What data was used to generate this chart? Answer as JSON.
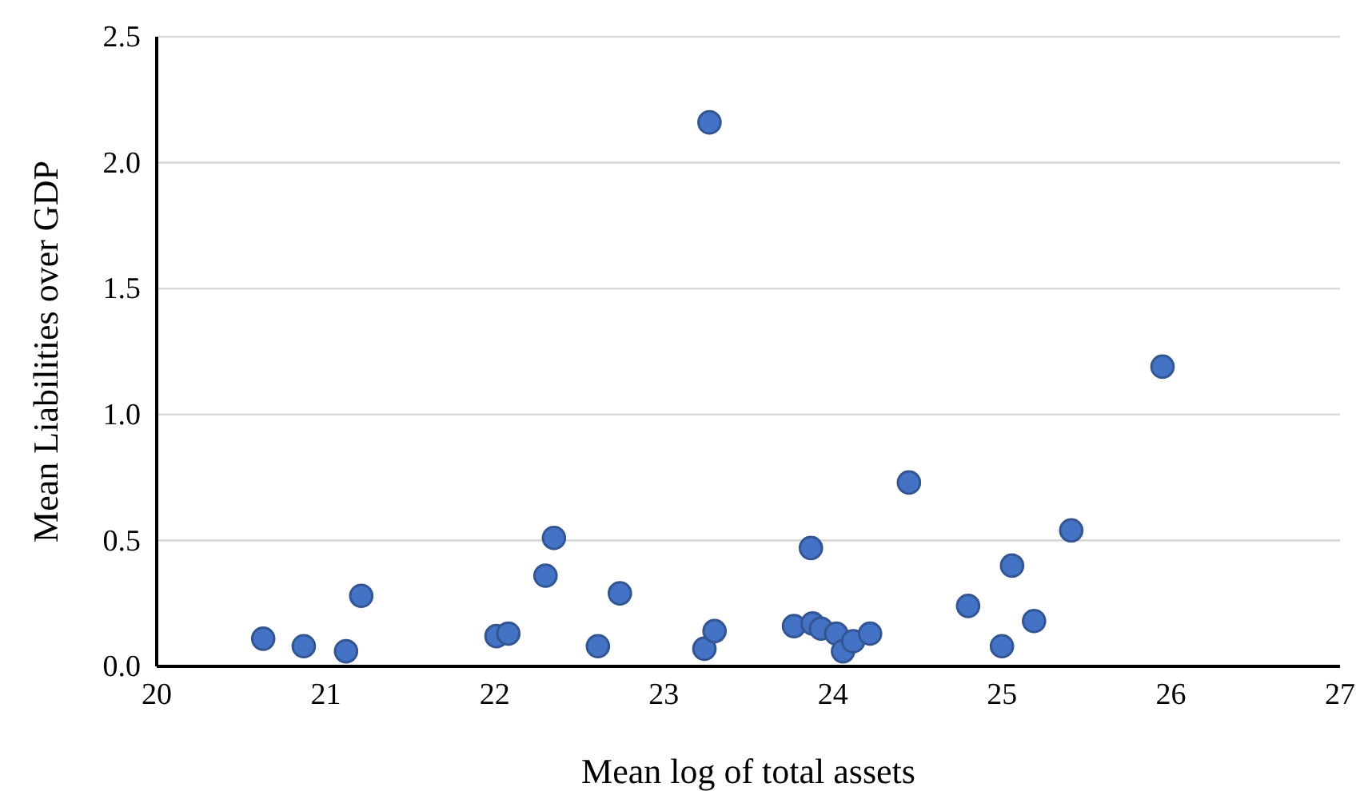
{
  "chart_data": {
    "type": "scatter",
    "xlabel": "Mean log of total assets",
    "ylabel": "Mean Liabilities over GDP",
    "x": [
      20.63,
      20.87,
      21.12,
      21.21,
      22.01,
      22.08,
      22.3,
      22.35,
      22.61,
      22.74,
      23.24,
      23.27,
      23.3,
      23.77,
      23.87,
      23.88,
      23.93,
      24.02,
      24.06,
      24.12,
      24.22,
      24.45,
      24.8,
      25.0,
      25.06,
      25.19,
      25.41,
      25.95
    ],
    "values": [
      0.11,
      0.08,
      0.06,
      0.28,
      0.12,
      0.13,
      0.36,
      0.51,
      0.08,
      0.29,
      0.07,
      2.16,
      0.14,
      0.16,
      0.47,
      0.17,
      0.15,
      0.13,
      0.06,
      0.1,
      0.13,
      0.73,
      0.24,
      0.08,
      0.4,
      0.18,
      0.54,
      1.19
    ],
    "color": "#4472c4",
    "marker": "circle",
    "xlim": [
      20,
      27
    ],
    "xticks": [
      20,
      21,
      22,
      23,
      24,
      25,
      26,
      27
    ],
    "ylim": [
      0,
      2.5
    ],
    "yticks": [
      {
        "value": 0,
        "label": "0.0"
      },
      {
        "value": 0.5,
        "label": "0.5"
      },
      {
        "value": 1,
        "label": "1.0"
      },
      {
        "value": 1.5,
        "label": "1.5"
      },
      {
        "value": 2,
        "label": "2.0"
      },
      {
        "value": 2.5,
        "label": "2.5"
      }
    ],
    "grid": "y"
  }
}
